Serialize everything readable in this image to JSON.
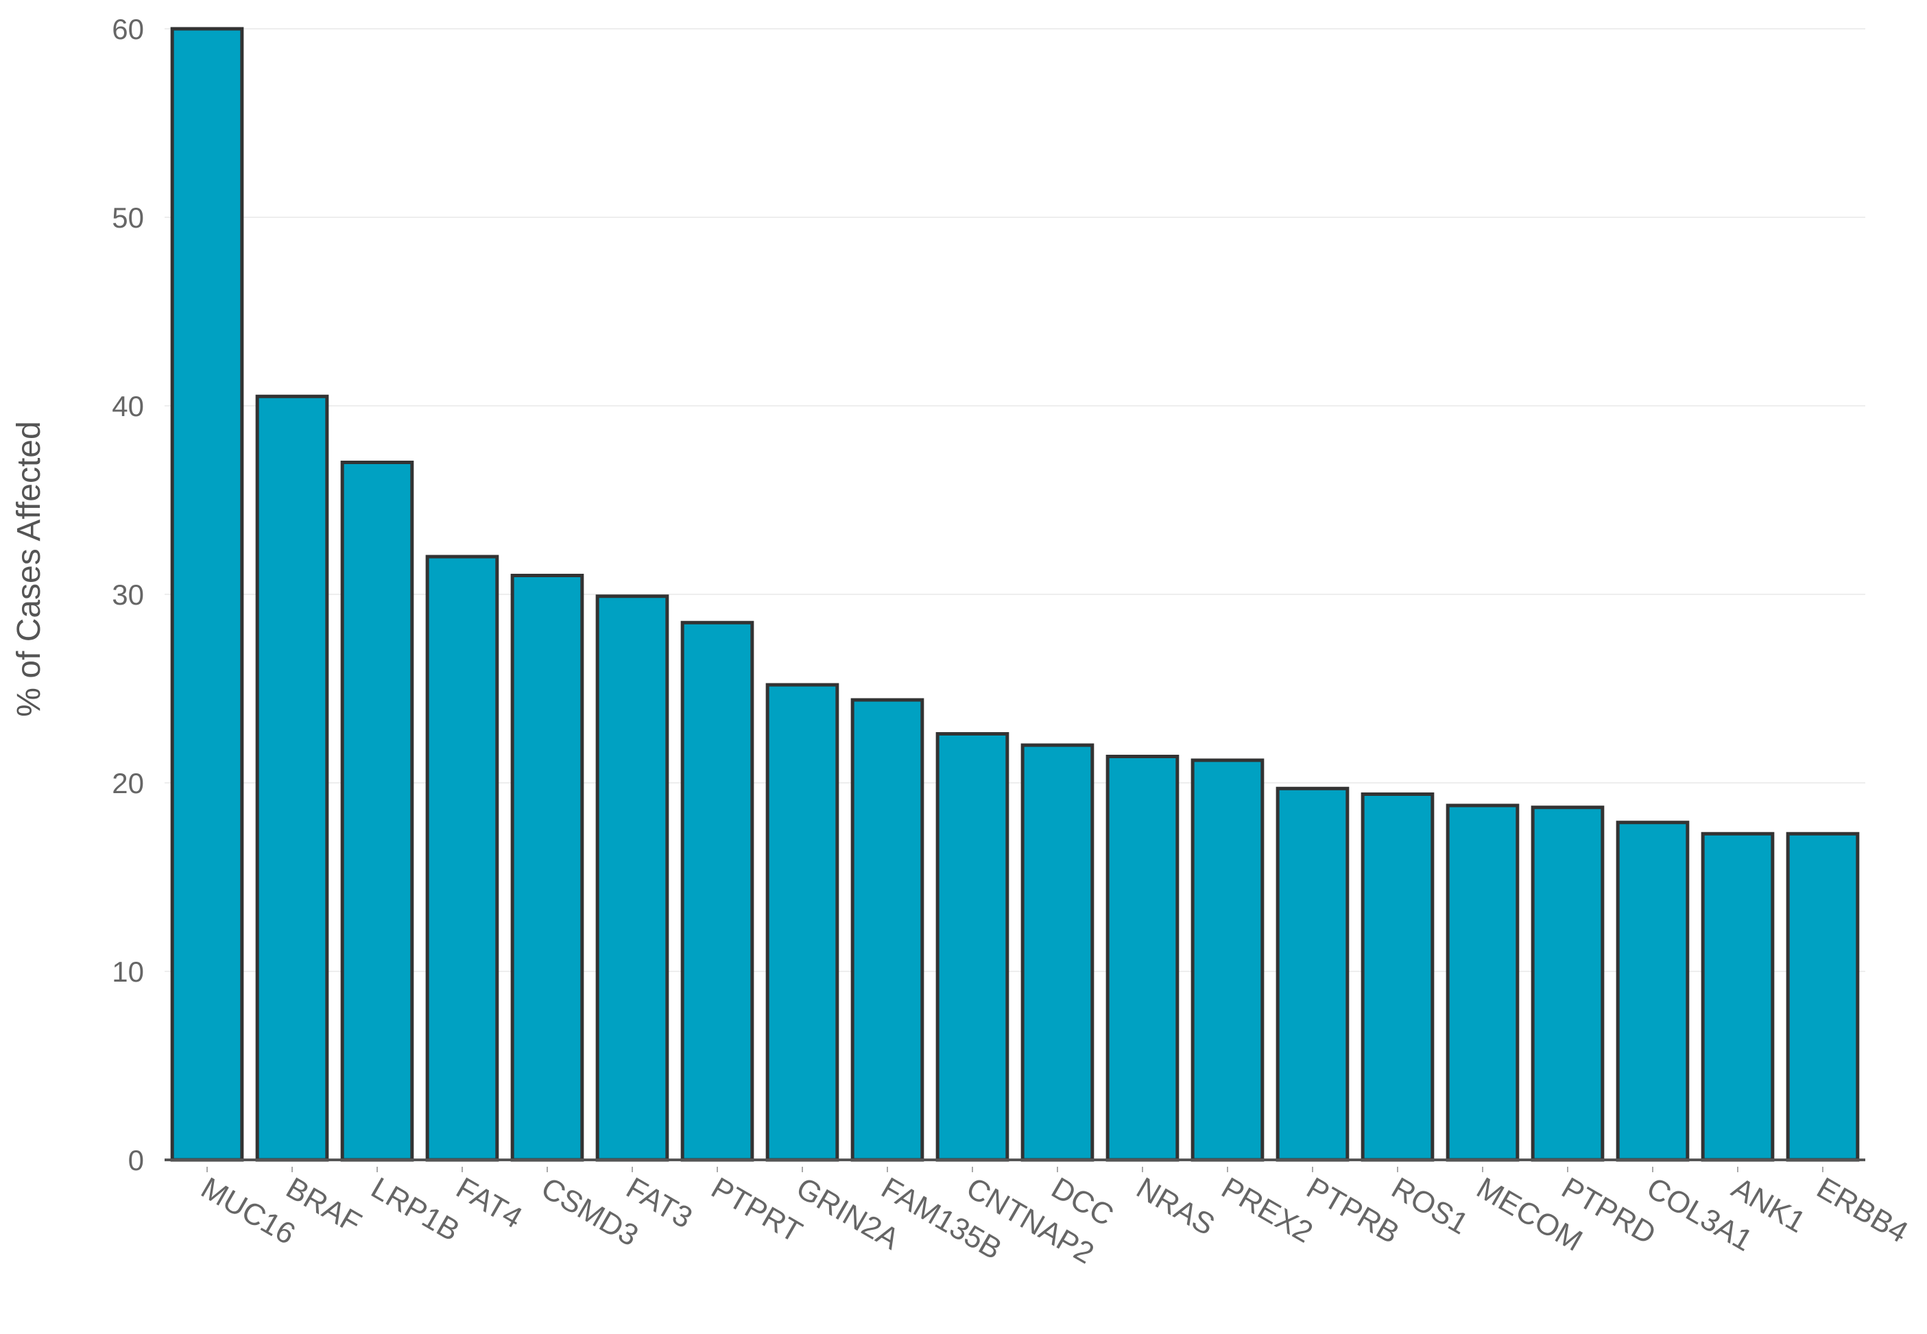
{
  "chart_data": {
    "type": "bar",
    "title": "",
    "xlabel": "",
    "ylabel": "% of Cases Affected",
    "ylim": [
      0,
      60
    ],
    "yticks": [
      0,
      10,
      20,
      30,
      40,
      50,
      60
    ],
    "grid": true,
    "legend": "none",
    "bar_color": "#00a1c2",
    "bar_border_color": "#333333",
    "categories": [
      "MUC16",
      "BRAF",
      "LRP1B",
      "FAT4",
      "CSMD3",
      "FAT3",
      "PTPRT",
      "GRIN2A",
      "FAM135B",
      "CNTNAP2",
      "DCC",
      "NRAS",
      "PREX2",
      "PTPRB",
      "ROS1",
      "MECOM",
      "PTPRD",
      "COL3A1",
      "ANK1",
      "ERBB4"
    ],
    "values": [
      60.0,
      40.5,
      37.0,
      32.0,
      31.0,
      29.9,
      28.5,
      25.2,
      24.4,
      22.6,
      22.0,
      21.4,
      21.2,
      19.7,
      19.4,
      18.8,
      18.7,
      17.9,
      17.3,
      17.3
    ]
  }
}
